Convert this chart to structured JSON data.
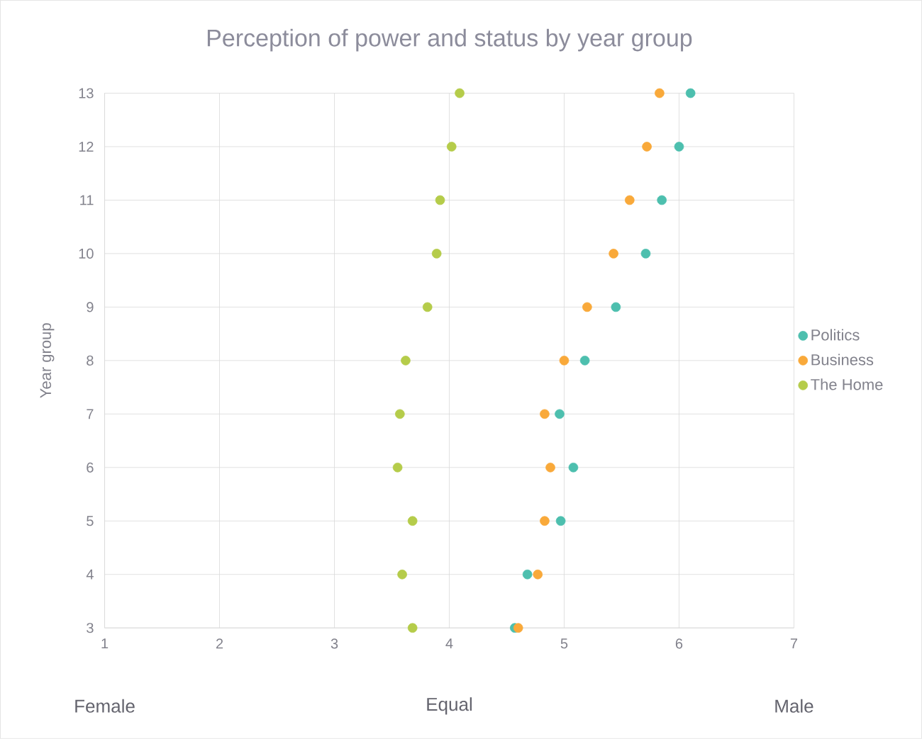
{
  "chart_data": {
    "type": "scatter",
    "title": "Perception of power and status by year group",
    "ylabel": "Year group",
    "xlim": [
      1,
      7
    ],
    "xticks": [
      1,
      2,
      3,
      4,
      5,
      6,
      7
    ],
    "ylim": [
      3,
      13
    ],
    "yticks": [
      3,
      4,
      5,
      6,
      7,
      8,
      9,
      10,
      11,
      12,
      13
    ],
    "grid": true,
    "legend": "right",
    "marker": "circle",
    "annotations": [
      "Female",
      "Equal",
      "Male"
    ],
    "series": [
      {
        "name": "Politics",
        "color": "#4dbfae",
        "x": [
          4.57,
          4.68,
          4.97,
          5.08,
          4.96,
          5.18,
          5.45,
          5.71,
          5.85,
          6.0,
          6.1
        ],
        "values": [
          3,
          4,
          5,
          6,
          7,
          8,
          9,
          10,
          11,
          12,
          13
        ]
      },
      {
        "name": "Business",
        "color": "#f9a93a",
        "x": [
          4.6,
          4.77,
          4.83,
          4.88,
          4.83,
          5.0,
          5.2,
          5.43,
          5.57,
          5.72,
          5.83
        ],
        "values": [
          3,
          4,
          5,
          6,
          7,
          8,
          9,
          10,
          11,
          12,
          13
        ]
      },
      {
        "name": "The Home",
        "color": "#b5cc4a",
        "x": [
          3.68,
          3.59,
          3.68,
          3.55,
          3.57,
          3.62,
          3.81,
          3.89,
          3.92,
          4.02,
          4.09
        ],
        "values": [
          3,
          4,
          5,
          6,
          7,
          8,
          9,
          10,
          11,
          12,
          13
        ]
      }
    ]
  }
}
